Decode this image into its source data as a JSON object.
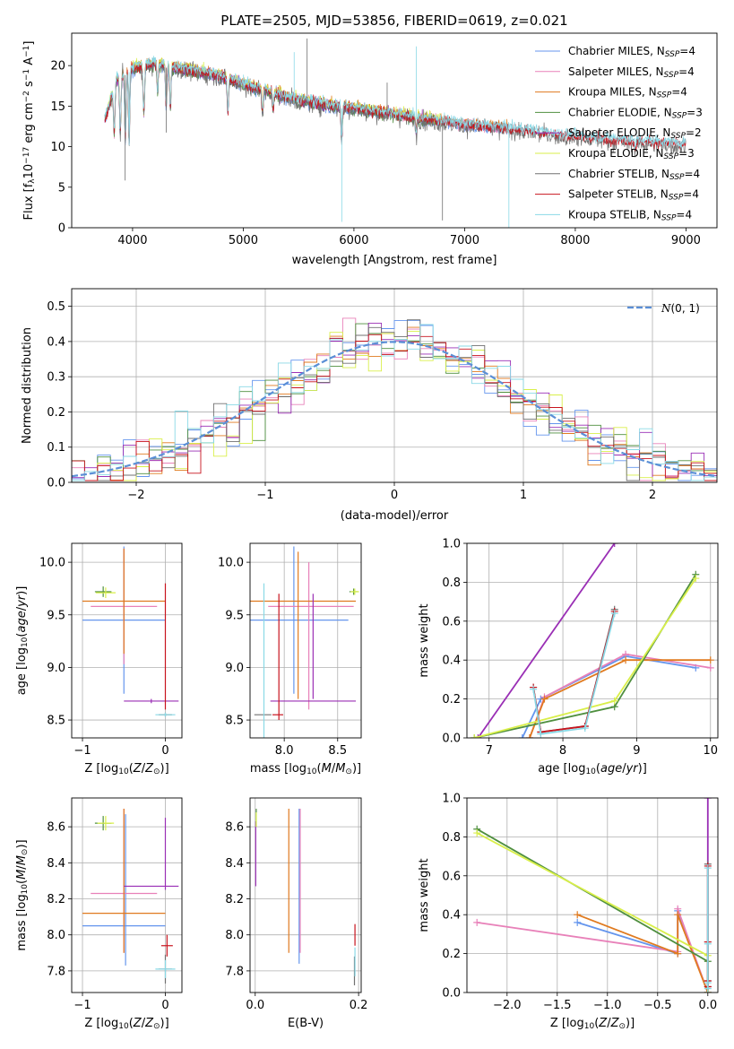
{
  "figure": {
    "title": "PLATE=2505, MJD=53856, FIBERID=0619, z=0.021"
  },
  "colors": {
    "Chabrier MILES": "#6495ed",
    "Salpeter MILES": "#e881b9",
    "Kroupa MILES": "#e07a1f",
    "Chabrier ELODIE": "#4f8f3f",
    "Salpeter ELODIE": "#9a2fb5",
    "Kroupa ELODIE": "#d9ef4a",
    "Chabrier STELIB": "#707070",
    "Salpeter STELIB": "#c8141e",
    "Kroupa STELIB": "#8ad9e6"
  },
  "chart_data": [
    {
      "id": "spectrum",
      "type": "line",
      "xlabel": "wavelength [Angstrom, rest frame]",
      "ylabel": "Flux [f_λ10^-17 erg cm^-2 s^-1 A^-1]",
      "xlim": [
        3450,
        9280
      ],
      "ylim": [
        0,
        24
      ],
      "xticks": [
        4000,
        5000,
        6000,
        7000,
        8000,
        9000
      ],
      "yticks": [
        0,
        5,
        10,
        15,
        20
      ],
      "grid": false,
      "legend_position": "right",
      "series": [
        {
          "name": "Chabrier MILES, N_SSP=4",
          "model": "Chabrier MILES",
          "range": [
            3750,
            7400
          ]
        },
        {
          "name": "Salpeter MILES, N_SSP=4",
          "model": "Salpeter MILES",
          "range": [
            3750,
            7400
          ]
        },
        {
          "name": "Kroupa MILES, N_SSP=4",
          "model": "Kroupa MILES",
          "range": [
            3750,
            7400
          ]
        },
        {
          "name": "Chabrier ELODIE, N_SSP=3",
          "model": "Chabrier ELODIE",
          "range": [
            3750,
            6800
          ]
        },
        {
          "name": "Salpeter ELODIE, N_SSP=2",
          "model": "Salpeter ELODIE",
          "range": [
            3750,
            6800
          ]
        },
        {
          "name": "Kroupa ELODIE, N_SSP=3",
          "model": "Kroupa ELODIE",
          "range": [
            3750,
            6800
          ]
        },
        {
          "name": "Chabrier STELIB, N_SSP=4",
          "model": "Chabrier STELIB",
          "range": [
            3750,
            9000
          ]
        },
        {
          "name": "Salpeter STELIB, N_SSP=4",
          "model": "Salpeter STELIB",
          "range": [
            3750,
            9000
          ]
        },
        {
          "name": "Kroupa STELIB, N_SSP=4",
          "model": "Kroupa STELIB",
          "range": [
            3750,
            9000
          ]
        }
      ],
      "continuum": {
        "x": [
          3750,
          3850,
          4000,
          4200,
          4400,
          4600,
          4800,
          5000,
          5500,
          6000,
          6500,
          7000,
          7400,
          8000,
          8500,
          9000
        ],
        "y": [
          13,
          18,
          19.5,
          20,
          19.5,
          19,
          18.5,
          17.5,
          15.5,
          14.5,
          13.5,
          12.5,
          12,
          11,
          10.5,
          10
        ]
      }
    },
    {
      "id": "residuals",
      "type": "line",
      "xlabel": "(data-model)/error",
      "ylabel": "Normed distribution",
      "xlim": [
        -2.5,
        2.5
      ],
      "ylim": [
        0,
        0.55
      ],
      "xticks": [
        -2,
        -1,
        0,
        1,
        2
      ],
      "yticks": [
        0.0,
        0.1,
        0.2,
        0.3,
        0.4,
        0.5
      ],
      "grid": true,
      "legend_position": "top-right",
      "legend": "N(0,1)",
      "gaussian": {
        "mean": 0,
        "sigma": 1,
        "color": "#5b8fd6"
      },
      "bin_width": 0.1
    },
    {
      "id": "age_vs_Z",
      "type": "scatter",
      "xlabel": "Z [log10(Z/Z⊙)]",
      "ylabel": "age [log10(age/yr)]",
      "xlim": [
        -1.13,
        0.2
      ],
      "ylim": [
        8.33,
        10.18
      ],
      "xticks": [
        -1,
        0
      ],
      "yticks": [
        8.5,
        9.0,
        9.5,
        10.0
      ],
      "grid": true,
      "errorbars": [
        {
          "model": "Chabrier MILES",
          "x": -0.5,
          "y": 9.45,
          "xerr": 0.5,
          "yerr": 0.7
        },
        {
          "model": "Salpeter MILES",
          "x": -0.5,
          "y": 9.58,
          "xerr": 0.4,
          "yerr": 0.55
        },
        {
          "model": "Kroupa MILES",
          "x": -0.5,
          "y": 9.63,
          "xerr": 0.5,
          "yerr": 0.5
        },
        {
          "model": "Chabrier ELODIE",
          "x": -0.75,
          "y": 9.72,
          "xerr": 0.1,
          "yerr": 0.05
        },
        {
          "model": "Salpeter ELODIE",
          "x": -0.17,
          "y": 8.68,
          "xerr": 0.33,
          "yerr": 0.02
        },
        {
          "model": "Kroupa ELODIE",
          "x": -0.72,
          "y": 9.71,
          "xerr": 0.12,
          "yerr": 0.05
        },
        {
          "model": "Chabrier STELIB",
          "x": 0.0,
          "y": 8.55,
          "xerr": 0.08,
          "yerr": 0.02
        },
        {
          "model": "Salpeter STELIB",
          "x": 0.0,
          "y": 9.2,
          "xerr": 0.0,
          "yerr": 0.6
        },
        {
          "model": "Kroupa STELIB",
          "x": 0.0,
          "y": 8.55,
          "xerr": 0.12,
          "yerr": 0.02
        }
      ]
    },
    {
      "id": "age_vs_mass",
      "type": "scatter",
      "xlabel": "mass [log10(M/M⊙)]",
      "ylabel": "",
      "xlim": [
        7.68,
        8.72
      ],
      "ylim": [
        8.33,
        10.18
      ],
      "xticks": [
        8.0,
        8.5
      ],
      "yticks": [
        8.5,
        9.0,
        9.5,
        10.0
      ],
      "grid": true,
      "errorbars": [
        {
          "model": "Chabrier MILES",
          "x": 8.05,
          "y": 9.45,
          "xerr": 0.55,
          "yerr": 0.0
        },
        {
          "model": "Chabrier MILES",
          "x": 8.09,
          "y": 9.45,
          "xerr": 0.0,
          "yerr": 0.7
        },
        {
          "model": "Salpeter MILES",
          "x": 8.25,
          "y": 9.58,
          "xerr": 0.4,
          "yerr": 0.0
        },
        {
          "model": "Salpeter MILES",
          "x": 8.23,
          "y": 9.3,
          "xerr": 0.0,
          "yerr": 0.7
        },
        {
          "model": "Kroupa MILES",
          "x": 8.12,
          "y": 9.63,
          "xerr": 0.55,
          "yerr": 0.0
        },
        {
          "model": "Kroupa MILES",
          "x": 8.13,
          "y": 9.4,
          "xerr": 0.0,
          "yerr": 0.7
        },
        {
          "model": "Salpeter ELODIE",
          "x": 8.27,
          "y": 8.68,
          "xerr": 0.4,
          "yerr": 0.0
        },
        {
          "model": "Salpeter ELODIE",
          "x": 8.27,
          "y": 9.2,
          "xerr": 0.0,
          "yerr": 0.5
        },
        {
          "model": "Chabrier ELODIE",
          "x": 8.65,
          "y": 9.72,
          "xerr": 0.04,
          "yerr": 0.03
        },
        {
          "model": "Kroupa ELODIE",
          "x": 8.66,
          "y": 9.72,
          "xerr": 0.04,
          "yerr": 0.03
        },
        {
          "model": "Chabrier STELIB",
          "x": 7.8,
          "y": 8.55,
          "xerr": 0.08,
          "yerr": 0.0
        },
        {
          "model": "Salpeter STELIB",
          "x": 7.94,
          "y": 8.55,
          "xerr": 0.05,
          "yerr": 0.0
        },
        {
          "model": "Salpeter STELIB",
          "x": 7.95,
          "y": 9.1,
          "xerr": 0.0,
          "yerr": 0.6
        },
        {
          "model": "Kroupa STELIB",
          "x": 7.81,
          "y": 9.0,
          "xerr": 0.0,
          "yerr": 0.8
        }
      ]
    },
    {
      "id": "weight_vs_age",
      "type": "line",
      "xlabel": "age [log10(age/yr)]",
      "ylabel": "mass weight",
      "xlim": [
        6.7,
        10.1
      ],
      "ylim": [
        0,
        1.0
      ],
      "xticks": [
        7,
        8,
        9,
        10
      ],
      "yticks": [
        0.0,
        0.2,
        0.4,
        0.6,
        0.8,
        1.0
      ],
      "grid": true,
      "series": [
        {
          "model": "Chabrier MILES",
          "x": [
            7.45,
            7.7,
            8.85,
            9.8
          ],
          "y": [
            0.0,
            0.2,
            0.42,
            0.36
          ]
        },
        {
          "model": "Salpeter MILES",
          "x": [
            7.55,
            7.75,
            8.85,
            10.0
          ],
          "y": [
            0.0,
            0.21,
            0.43,
            0.36
          ]
        },
        {
          "model": "Kroupa MILES",
          "x": [
            7.55,
            7.75,
            8.85,
            10.0
          ],
          "y": [
            0.0,
            0.2,
            0.4,
            0.4
          ]
        },
        {
          "model": "Chabrier ELODIE",
          "x": [
            6.8,
            8.7,
            9.8
          ],
          "y": [
            0.0,
            0.16,
            0.84
          ]
        },
        {
          "model": "Salpeter ELODIE",
          "x": [
            6.85,
            8.7
          ],
          "y": [
            0.0,
            1.0
          ]
        },
        {
          "model": "Kroupa ELODIE",
          "x": [
            6.8,
            8.7,
            9.8
          ],
          "y": [
            0.0,
            0.19,
            0.82
          ]
        },
        {
          "model": "Chabrier STELIB",
          "x": [
            7.6,
            7.7,
            8.3,
            8.7
          ],
          "y": [
            0.26,
            0.03,
            0.06,
            0.66
          ]
        },
        {
          "model": "Salpeter STELIB",
          "x": [
            7.6,
            7.7,
            8.3,
            8.7
          ],
          "y": [
            0.26,
            0.03,
            0.06,
            0.65
          ]
        },
        {
          "model": "Kroupa STELIB",
          "x": [
            7.6,
            7.7,
            8.3,
            8.7
          ],
          "y": [
            0.25,
            0.02,
            0.05,
            0.64
          ]
        }
      ]
    },
    {
      "id": "mass_vs_Z",
      "type": "scatter",
      "xlabel": "Z [log10(Z/Z⊙)]",
      "ylabel": "mass [log10(M/M⊙)]",
      "xlim": [
        -1.13,
        0.2
      ],
      "ylim": [
        7.68,
        8.76
      ],
      "xticks": [
        -1,
        0
      ],
      "yticks": [
        7.8,
        8.0,
        8.2,
        8.4,
        8.6
      ],
      "grid": true,
      "errorbars": [
        {
          "model": "Chabrier MILES",
          "x": -0.5,
          "y": 8.05,
          "xerr": 0.5,
          "yerr": 0.0
        },
        {
          "model": "Chabrier MILES",
          "x": -0.48,
          "y": 8.25,
          "xerr": 0.0,
          "yerr": 0.42
        },
        {
          "model": "Salpeter MILES",
          "x": -0.5,
          "y": 8.23,
          "xerr": 0.4,
          "yerr": 0.0
        },
        {
          "model": "Salpeter MILES",
          "x": -0.5,
          "y": 8.3,
          "xerr": 0.0,
          "yerr": 0.4
        },
        {
          "model": "Kroupa MILES",
          "x": -0.5,
          "y": 8.12,
          "xerr": 0.5,
          "yerr": 0.0
        },
        {
          "model": "Kroupa MILES",
          "x": -0.5,
          "y": 8.3,
          "xerr": 0.0,
          "yerr": 0.4
        },
        {
          "model": "Salpeter ELODIE",
          "x": -0.17,
          "y": 8.27,
          "xerr": 0.33,
          "yerr": 0.0
        },
        {
          "model": "Salpeter ELODIE",
          "x": 0.0,
          "y": 8.45,
          "xerr": 0.0,
          "yerr": 0.2
        },
        {
          "model": "Chabrier ELODIE",
          "x": -0.75,
          "y": 8.62,
          "xerr": 0.1,
          "yerr": 0.04
        },
        {
          "model": "Kroupa ELODIE",
          "x": -0.72,
          "y": 8.62,
          "xerr": 0.1,
          "yerr": 0.04
        },
        {
          "model": "Chabrier STELIB",
          "x": 0.0,
          "y": 7.81,
          "xerr": 0.08,
          "yerr": 0.08
        },
        {
          "model": "Salpeter STELIB",
          "x": 0.02,
          "y": 7.94,
          "xerr": 0.07,
          "yerr": 0.06
        },
        {
          "model": "Kroupa STELIB",
          "x": 0.0,
          "y": 7.81,
          "xerr": 0.12,
          "yerr": 0.05
        }
      ]
    },
    {
      "id": "mass_vs_ebv",
      "type": "scatter",
      "xlabel": "E(B-V)",
      "ylabel": "",
      "xlim": [
        -0.01,
        0.205
      ],
      "ylim": [
        7.68,
        8.76
      ],
      "xticks": [
        0.0,
        0.2
      ],
      "yticks": [
        7.8,
        8.0,
        8.2,
        8.4,
        8.6
      ],
      "grid": true,
      "errorbars": [
        {
          "model": "Chabrier MILES",
          "x": 0.085,
          "y": 8.27,
          "xerr": 0.0,
          "yerr": 0.43
        },
        {
          "model": "Salpeter MILES",
          "x": 0.087,
          "y": 8.3,
          "xerr": 0.0,
          "yerr": 0.4
        },
        {
          "model": "Kroupa MILES",
          "x": 0.065,
          "y": 8.3,
          "xerr": 0.0,
          "yerr": 0.4
        },
        {
          "model": "Salpeter ELODIE",
          "x": 0.001,
          "y": 8.45,
          "xerr": 0.0,
          "yerr": 0.18
        },
        {
          "model": "Chabrier ELODIE",
          "x": 0.002,
          "y": 8.65,
          "xerr": 0.0,
          "yerr": 0.05
        },
        {
          "model": "Kroupa ELODIE",
          "x": 0.002,
          "y": 8.64,
          "xerr": 0.0,
          "yerr": 0.04
        },
        {
          "model": "Salpeter STELIB",
          "x": 0.193,
          "y": 8.0,
          "xerr": 0.0,
          "yerr": 0.06
        },
        {
          "model": "Chabrier STELIB",
          "x": 0.192,
          "y": 7.8,
          "xerr": 0.0,
          "yerr": 0.08
        },
        {
          "model": "Kroupa STELIB",
          "x": 0.193,
          "y": 7.85,
          "xerr": 0.0,
          "yerr": 0.08
        }
      ]
    },
    {
      "id": "weight_vs_Z",
      "type": "line",
      "xlabel": "Z [log10(Z/Z⊙)]",
      "ylabel": "mass weight",
      "xlim": [
        -2.4,
        0.1
      ],
      "ylim": [
        0,
        1.0
      ],
      "xticks": [
        -2.0,
        -1.5,
        -1.0,
        -0.5,
        0.0
      ],
      "yticks": [
        0.0,
        0.2,
        0.4,
        0.6,
        0.8,
        1.0
      ],
      "grid": true,
      "series": [
        {
          "model": "Chabrier MILES",
          "x": [
            -1.3,
            -0.3,
            -0.3,
            0.0
          ],
          "y": [
            0.36,
            0.2,
            0.42,
            0.0
          ]
        },
        {
          "model": "Salpeter MILES",
          "x": [
            -2.3,
            -0.3,
            -0.3,
            0.0
          ],
          "y": [
            0.36,
            0.21,
            0.43,
            0.0
          ]
        },
        {
          "model": "Kroupa MILES",
          "x": [
            -1.3,
            -0.3,
            -0.3,
            0.0
          ],
          "y": [
            0.4,
            0.2,
            0.4,
            0.0
          ]
        },
        {
          "model": "Chabrier ELODIE",
          "x": [
            -2.3,
            0.0,
            0.0
          ],
          "y": [
            0.84,
            0.16,
            0.0
          ]
        },
        {
          "model": "Salpeter ELODIE",
          "x": [
            0.0,
            0.0
          ],
          "y": [
            0.0,
            1.0
          ]
        },
        {
          "model": "Kroupa ELODIE",
          "x": [
            -2.3,
            0.0,
            0.0
          ],
          "y": [
            0.82,
            0.19,
            0.0
          ]
        },
        {
          "model": "Chabrier STELIB",
          "x": [
            0.0,
            0.0,
            0.0,
            0.0
          ],
          "y": [
            0.26,
            0.03,
            0.06,
            0.66
          ]
        },
        {
          "model": "Salpeter STELIB",
          "x": [
            0.0,
            0.0,
            0.0,
            0.0
          ],
          "y": [
            0.26,
            0.03,
            0.06,
            0.65
          ]
        },
        {
          "model": "Kroupa STELIB",
          "x": [
            0.0,
            0.0,
            0.0,
            0.0
          ],
          "y": [
            0.25,
            0.02,
            0.05,
            0.64
          ]
        }
      ]
    }
  ]
}
